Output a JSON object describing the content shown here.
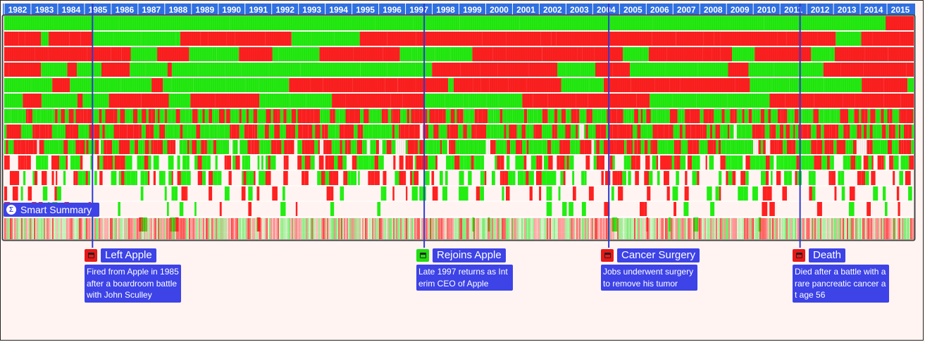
{
  "chart_data": {
    "type": "heatmap",
    "title": "",
    "x": [
      "1982",
      "1983",
      "1984",
      "1985",
      "1986",
      "1987",
      "1988",
      "1989",
      "1990",
      "1991",
      "1992",
      "1993",
      "1994",
      "1995",
      "1996",
      "1997",
      "1998",
      "1999",
      "2000",
      "2001",
      "2002",
      "2003",
      "2004",
      "2005",
      "2006",
      "2007",
      "2008",
      "2009",
      "2010",
      "2011",
      "2012",
      "2013",
      "2014",
      "2015"
    ],
    "rows": 14,
    "colors": {
      "positive": "#22ee11",
      "negative": "#ff2020",
      "header": "#2f6fe0",
      "marker_line": "#2e3ad0"
    },
    "grid": true
  },
  "smart_summary": {
    "label": "Smart Summary",
    "icon": "sigma-icon"
  },
  "events": [
    {
      "year": 1985.3,
      "title": "Left Apple",
      "icon": "calendar-icon",
      "color": "#e81818",
      "description": "Fired from Apple in 1985 after a boardroom battle with John Sculley"
    },
    {
      "year": 1997.7,
      "title": "Rejoins Apple",
      "icon": "calendar-icon",
      "color": "#22dd11",
      "description": "Late 1997 returns as Interim CEO of Apple"
    },
    {
      "year": 2004.6,
      "title": "Cancer Surgery",
      "icon": "calendar-icon",
      "color": "#e81818",
      "description": "Jobs underwent surgery to remove his tumor"
    },
    {
      "year": 2011.75,
      "title": "Death",
      "icon": "calendar-icon",
      "color": "#e81818",
      "description": "Died after a battle with a rare pancreatic cancer at age 56"
    }
  ]
}
